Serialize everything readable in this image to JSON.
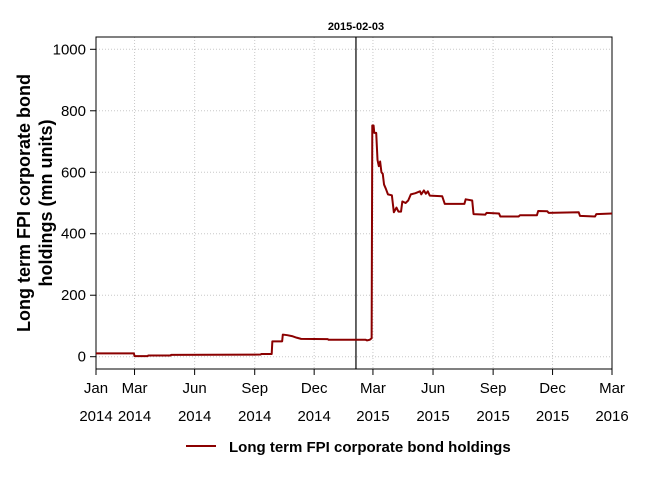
{
  "chart_data": {
    "type": "line",
    "title": "",
    "xlabel": "",
    "ylabel_lines": [
      "Long term FPI corporate bond",
      "holdings (mn units)"
    ],
    "xlim": [
      "2014-01-01",
      "2016-03-01"
    ],
    "ylim": [
      -40,
      1040
    ],
    "yticks": [
      0,
      200,
      400,
      600,
      800,
      1000
    ],
    "xticks": [
      {
        "date": "2014-01-01",
        "month": "Jan",
        "year": "2014"
      },
      {
        "date": "2014-03-01",
        "month": "Mar",
        "year": "2014"
      },
      {
        "date": "2014-06-01",
        "month": "Jun",
        "year": "2014"
      },
      {
        "date": "2014-09-01",
        "month": "Sep",
        "year": "2014"
      },
      {
        "date": "2014-12-01",
        "month": "Dec",
        "year": "2014"
      },
      {
        "date": "2015-03-01",
        "month": "Mar",
        "year": "2015"
      },
      {
        "date": "2015-06-01",
        "month": "Jun",
        "year": "2015"
      },
      {
        "date": "2015-09-01",
        "month": "Sep",
        "year": "2015"
      },
      {
        "date": "2015-12-01",
        "month": "Dec",
        "year": "2015"
      },
      {
        "date": "2016-03-01",
        "month": "Mar",
        "year": "2016"
      }
    ],
    "grid": true,
    "legend_position": "bottom",
    "vline": {
      "date": "2015-02-03",
      "label": "2015-02-03"
    },
    "series": [
      {
        "name": "Long term FPI corporate bond holdings",
        "color": "#8b0000",
        "points": [
          [
            "2014-01-01",
            11
          ],
          [
            "2014-02-28",
            11
          ],
          [
            "2014-03-01",
            2
          ],
          [
            "2014-03-21",
            2
          ],
          [
            "2014-03-22",
            4
          ],
          [
            "2014-04-25",
            4
          ],
          [
            "2014-04-26",
            6
          ],
          [
            "2014-09-10",
            7
          ],
          [
            "2014-09-11",
            9
          ],
          [
            "2014-09-27",
            9
          ],
          [
            "2014-09-28",
            50
          ],
          [
            "2014-10-13",
            50
          ],
          [
            "2014-10-14",
            72
          ],
          [
            "2014-10-21",
            70
          ],
          [
            "2014-10-28",
            67
          ],
          [
            "2014-11-04",
            62
          ],
          [
            "2014-11-11",
            58
          ],
          [
            "2014-12-22",
            57
          ],
          [
            "2014-12-23",
            55
          ],
          [
            "2015-02-18",
            55
          ],
          [
            "2015-02-20",
            53
          ],
          [
            "2015-02-24",
            55
          ],
          [
            "2015-02-27",
            60
          ],
          [
            "2015-02-28",
            752
          ],
          [
            "2015-03-02",
            752
          ],
          [
            "2015-03-03",
            728
          ],
          [
            "2015-03-06",
            728
          ],
          [
            "2015-03-08",
            640
          ],
          [
            "2015-03-10",
            620
          ],
          [
            "2015-03-12",
            635
          ],
          [
            "2015-03-14",
            600
          ],
          [
            "2015-03-16",
            595
          ],
          [
            "2015-03-18",
            560
          ],
          [
            "2015-03-21",
            545
          ],
          [
            "2015-03-24",
            528
          ],
          [
            "2015-03-30",
            525
          ],
          [
            "2015-04-02",
            470
          ],
          [
            "2015-04-06",
            485
          ],
          [
            "2015-04-09",
            472
          ],
          [
            "2015-04-13",
            472
          ],
          [
            "2015-04-15",
            505
          ],
          [
            "2015-04-20",
            500
          ],
          [
            "2015-04-24",
            508
          ],
          [
            "2015-04-28",
            528
          ],
          [
            "2015-05-05",
            532
          ],
          [
            "2015-05-12",
            538
          ],
          [
            "2015-05-14",
            528
          ],
          [
            "2015-05-18",
            541
          ],
          [
            "2015-05-21",
            530
          ],
          [
            "2015-05-24",
            538
          ],
          [
            "2015-05-27",
            524
          ],
          [
            "2015-06-15",
            522
          ],
          [
            "2015-06-19",
            497
          ],
          [
            "2015-07-19",
            497
          ],
          [
            "2015-07-21",
            512
          ],
          [
            "2015-07-31",
            508
          ],
          [
            "2015-08-02",
            464
          ],
          [
            "2015-08-20",
            462
          ],
          [
            "2015-08-22",
            468
          ],
          [
            "2015-09-10",
            466
          ],
          [
            "2015-09-12",
            456
          ],
          [
            "2015-10-10",
            456
          ],
          [
            "2015-10-12",
            460
          ],
          [
            "2015-11-07",
            460
          ],
          [
            "2015-11-09",
            474
          ],
          [
            "2015-11-23",
            473
          ],
          [
            "2015-11-25",
            468
          ],
          [
            "2016-01-10",
            470
          ],
          [
            "2016-01-12",
            458
          ],
          [
            "2016-02-04",
            456
          ],
          [
            "2016-02-06",
            464
          ],
          [
            "2016-03-01",
            466
          ]
        ]
      }
    ]
  }
}
